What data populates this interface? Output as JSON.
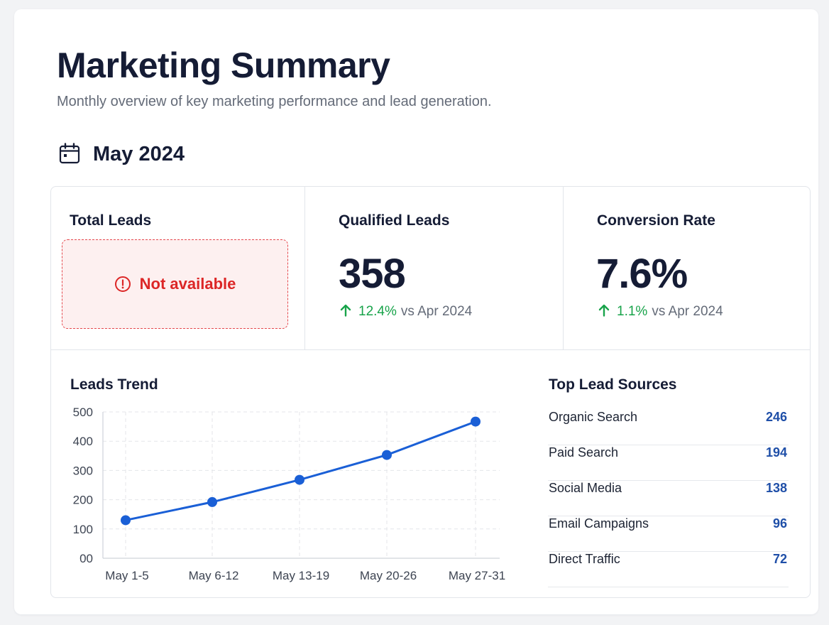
{
  "header": {
    "title": "Marketing Summary",
    "subtitle": "Monthly overview of key marketing performance and lead generation.",
    "period": "May 2024",
    "period_icon": "calendar-icon"
  },
  "kpis": {
    "total_leads": {
      "label": "Total Leads",
      "unavailable_text": "Not available",
      "unavailable_icon": "alert-circle-icon"
    },
    "qualified_leads": {
      "label": "Qualified Leads",
      "value": "358",
      "change": "12.4%",
      "compare": "vs Apr 2024",
      "trend_icon": "arrow-up-icon"
    },
    "conversion_rate": {
      "label": "Conversion Rate",
      "value": "7.6%",
      "change": "1.1%",
      "compare": "vs Apr 2024",
      "trend_icon": "arrow-up-icon"
    }
  },
  "trend": {
    "title": "Leads Trend"
  },
  "sources": {
    "title": "Top Lead Sources",
    "items": [
      {
        "name": "Organic Search",
        "value": "246"
      },
      {
        "name": "Paid Search",
        "value": "194"
      },
      {
        "name": "Social Media",
        "value": "138"
      },
      {
        "name": "Email Campaigns",
        "value": "96"
      },
      {
        "name": "Direct Traffic",
        "value": "72"
      }
    ]
  },
  "colors": {
    "accent_blue": "#1a5fd6",
    "positive_green": "#18a34a",
    "error_red": "#dc2626",
    "source_value_blue": "#1f4fa8"
  },
  "chart_data": {
    "type": "line",
    "title": "Leads Trend",
    "categories": [
      "May 1-5",
      "May 6-12",
      "May 13-19",
      "May 20-26",
      "May 27-31"
    ],
    "values": [
      130,
      192,
      268,
      353,
      467
    ],
    "y_tick_labels": [
      "00",
      "100",
      "200",
      "300",
      "400",
      "500"
    ],
    "ylim": [
      0,
      500
    ],
    "grid": true,
    "legend": "none"
  }
}
